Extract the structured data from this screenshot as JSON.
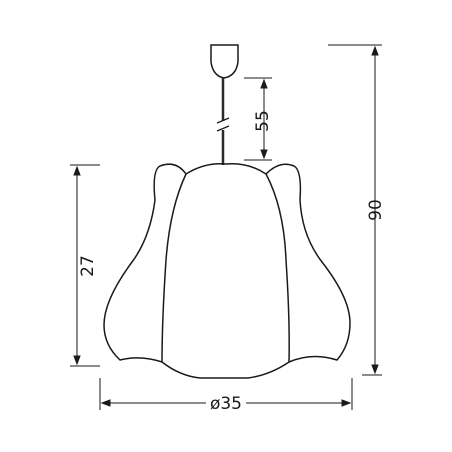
{
  "dimensions": {
    "cord_length": "55",
    "total_height": "90",
    "shade_height": "27",
    "shade_diameter": "ø35"
  },
  "colors": {
    "line": "#1a1a1a",
    "cord": "#2a2a2a",
    "background": "#ffffff"
  }
}
